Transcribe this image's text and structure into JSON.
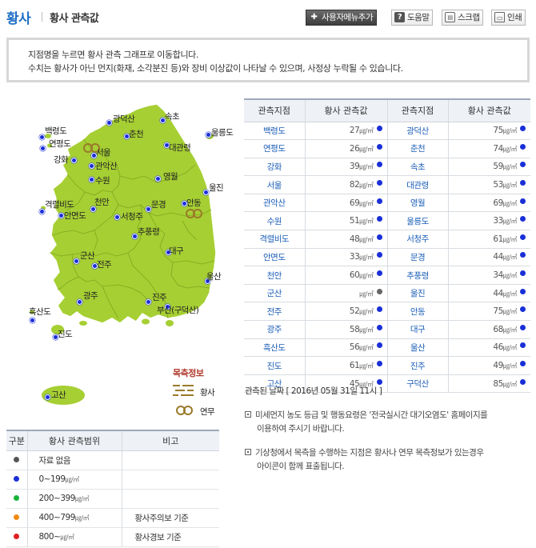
{
  "header": {
    "title": "황사",
    "subtitle": "황사 관측값",
    "buttons": [
      {
        "label": "사용자메뉴추가",
        "icon": "plus-icon"
      },
      {
        "label": "도움말",
        "icon": "help-icon"
      },
      {
        "label": "스크랩",
        "icon": "clipboard-icon"
      },
      {
        "label": "인쇄",
        "icon": "printer-icon"
      }
    ]
  },
  "notice": {
    "line1": "지점명을 누르면 황사 관측 그래프로 이동합니다.",
    "line2": "수치는 황사가 아닌 먼지(화재, 소각분진 등)와 장비 이상값이 나타날 수 있으며, 사정상 누락될 수 있습니다."
  },
  "map": {
    "fill_color": "#a6cf33",
    "border_color": "#7fa71d",
    "stations": [
      "속초",
      "광덕산",
      "춘천",
      "백령도",
      "연평도",
      "서울",
      "관악산",
      "강화",
      "대관령",
      "울릉도",
      "수원",
      "영월",
      "울진",
      "천안",
      "격렬비도",
      "안면도",
      "문경",
      "안동",
      "서청주",
      "추풍령",
      "대구",
      "군산",
      "전주",
      "광주",
      "진주",
      "부산(구덕산)",
      "울산",
      "흑산도",
      "진도",
      "고산"
    ]
  },
  "map_legend": {
    "title": "목측정보",
    "items": [
      {
        "label": "황사",
        "icon": "dust-haze-icon"
      },
      {
        "label": "연무",
        "icon": "mist-icon"
      }
    ]
  },
  "table": {
    "headers": [
      "관측지점",
      "황사 관측값",
      "관측지점",
      "황사 관측값"
    ],
    "unit": "㎍/㎥",
    "rows": [
      {
        "s1": "백령도",
        "v1": "27",
        "s2": "광덕산",
        "v2": "75"
      },
      {
        "s1": "연평도",
        "v1": "26",
        "s2": "춘천",
        "v2": "74"
      },
      {
        "s1": "강화",
        "v1": "39",
        "s2": "속초",
        "v2": "59"
      },
      {
        "s1": "서울",
        "v1": "82",
        "s2": "대관령",
        "v2": "53"
      },
      {
        "s1": "관악산",
        "v1": "69",
        "s2": "영월",
        "v2": "69"
      },
      {
        "s1": "수원",
        "v1": "51",
        "s2": "울릉도",
        "v2": "33"
      },
      {
        "s1": "격렬비도",
        "v1": "48",
        "s2": "서청주",
        "v2": "61"
      },
      {
        "s1": "안면도",
        "v1": "33",
        "s2": "문경",
        "v2": "44"
      },
      {
        "s1": "천안",
        "v1": "60",
        "s2": "추풍령",
        "v2": "34"
      },
      {
        "s1": "군산",
        "v1": "",
        "s2": "울진",
        "v2": "44"
      },
      {
        "s1": "전주",
        "v1": "52",
        "s2": "안동",
        "v2": "75"
      },
      {
        "s1": "광주",
        "v1": "58",
        "s2": "대구",
        "v2": "68"
      },
      {
        "s1": "흑산도",
        "v1": "56",
        "s2": "울산",
        "v2": "46"
      },
      {
        "s1": "진도",
        "v1": "61",
        "s2": "진주",
        "v2": "49"
      },
      {
        "s1": "고산",
        "v1": "45",
        "s2": "구덕산",
        "v2": "85"
      }
    ]
  },
  "observed_date": "관측된 날짜 [ 2016년 05월 31일 11시 ]",
  "notes": [
    {
      "line1": "미세먼지 농도 등급 및 행동요령은 '전국실시간 대기오염도' 홈페이지를",
      "line2": "이용하여 주시기 바랍니다."
    },
    {
      "line1": "기상청에서 목측을 수행하는 지점은 황사나 연무 목측정보가 있는경우",
      "line2": "아이콘이 함께 표출됩니다."
    }
  ],
  "range_table": {
    "headers": [
      "구분",
      "황사 관측범위",
      "비고"
    ],
    "rows": [
      {
        "color": "#555555",
        "range": "자료 없음",
        "unit": "",
        "note": ""
      },
      {
        "color": "#1a2fd6",
        "range": "0~199",
        "unit": "㎍/㎥",
        "note": ""
      },
      {
        "color": "#19b33a",
        "range": "200~399",
        "unit": "㎍/㎥",
        "note": ""
      },
      {
        "color": "#f08a12",
        "range": "400~799",
        "unit": "㎍/㎥",
        "note": "황사주의보 기준"
      },
      {
        "color": "#e02020",
        "range": "800~",
        "unit": "㎍/㎥",
        "note": "황사경보 기준"
      }
    ]
  }
}
